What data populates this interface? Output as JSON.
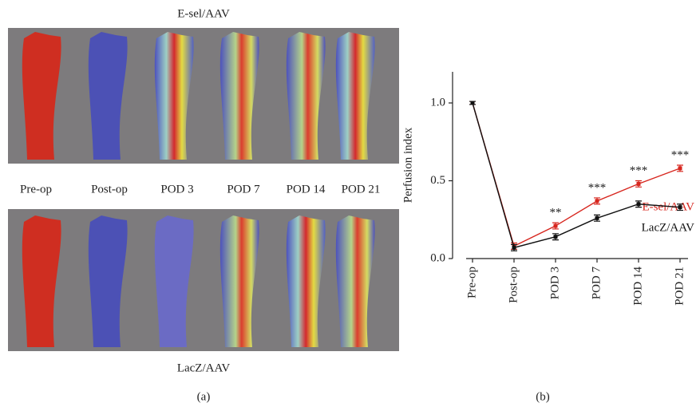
{
  "panel_a": {
    "top_label": "E-sel/AAV",
    "bottom_label": "LacZ/AAV",
    "timepoints": [
      "Pre-op",
      "Post-op",
      "POD 3",
      "POD 7",
      "POD 14",
      "POD 21"
    ],
    "caption": "(a)"
  },
  "chart_data": {
    "type": "line",
    "y_label": "Perfusion index",
    "categories": [
      "Pre-op",
      "Post-op",
      "POD 3",
      "POD 7",
      "POD 14",
      "POD 21"
    ],
    "series": [
      {
        "name": "E-sel/AAV",
        "color": "#d7261e",
        "values": [
          1.0,
          0.08,
          0.21,
          0.37,
          0.48,
          0.58
        ],
        "errors": [
          0.01,
          0.02,
          0.02,
          0.02,
          0.02,
          0.02
        ]
      },
      {
        "name": "LacZ/AAV",
        "color": "#111111",
        "values": [
          1.0,
          0.07,
          0.14,
          0.26,
          0.35,
          0.33
        ],
        "errors": [
          0.01,
          0.02,
          0.02,
          0.02,
          0.02,
          0.02
        ]
      }
    ],
    "significance": [
      null,
      null,
      "**",
      "***",
      "***",
      "***"
    ],
    "ylim": [
      0,
      1.2
    ],
    "yticks": [
      {
        "value": 0,
        "label": "0.0"
      },
      {
        "value": 0.5,
        "label": "0.5"
      },
      {
        "value": 1,
        "label": "1.0"
      }
    ],
    "caption": "(b)"
  }
}
